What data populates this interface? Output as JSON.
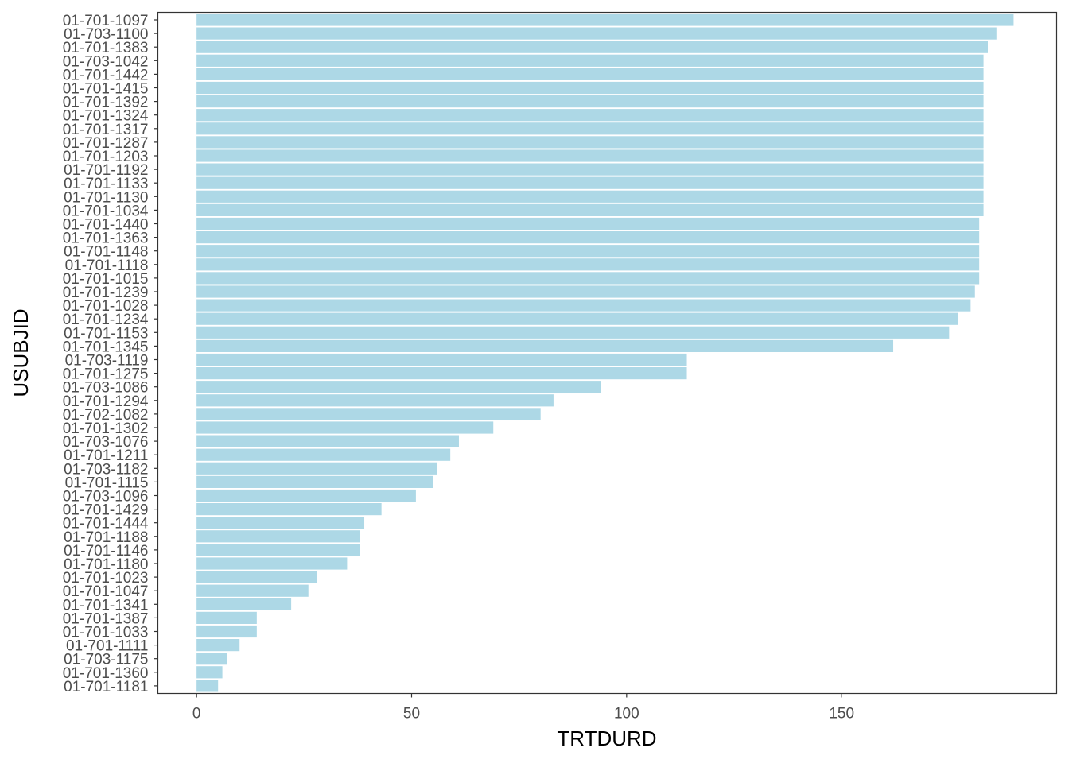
{
  "chart_data": {
    "type": "bar",
    "orientation": "horizontal",
    "xlabel": "TRTDURD",
    "ylabel": "USUBJID",
    "xlim": [
      -9,
      200
    ],
    "xticks": [
      0,
      50,
      100,
      150
    ],
    "grid": false,
    "legend": "none",
    "bar_color": "#ADD8E6",
    "panel_border_color": "#333333",
    "categories": [
      "01-701-1097",
      "01-703-1100",
      "01-701-1383",
      "01-703-1042",
      "01-701-1442",
      "01-701-1415",
      "01-701-1392",
      "01-701-1324",
      "01-701-1317",
      "01-701-1287",
      "01-701-1203",
      "01-701-1192",
      "01-701-1133",
      "01-701-1130",
      "01-701-1034",
      "01-701-1440",
      "01-701-1363",
      "01-701-1148",
      "01-701-1118",
      "01-701-1015",
      "01-701-1239",
      "01-701-1028",
      "01-701-1234",
      "01-701-1153",
      "01-701-1345",
      "01-703-1119",
      "01-701-1275",
      "01-703-1086",
      "01-701-1294",
      "01-702-1082",
      "01-701-1302",
      "01-703-1076",
      "01-701-1211",
      "01-703-1182",
      "01-701-1115",
      "01-703-1096",
      "01-701-1429",
      "01-701-1444",
      "01-701-1188",
      "01-701-1146",
      "01-701-1180",
      "01-701-1023",
      "01-701-1047",
      "01-701-1341",
      "01-701-1387",
      "01-701-1033",
      "01-701-1111",
      "01-703-1175",
      "01-701-1360",
      "01-701-1181"
    ],
    "values": [
      190,
      186,
      184,
      183,
      183,
      183,
      183,
      183,
      183,
      183,
      183,
      183,
      183,
      183,
      183,
      182,
      182,
      182,
      182,
      182,
      181,
      180,
      177,
      175,
      162,
      114,
      114,
      94,
      83,
      80,
      69,
      61,
      59,
      56,
      55,
      51,
      43,
      39,
      38,
      38,
      35,
      28,
      26,
      22,
      14,
      14,
      10,
      7,
      6,
      5
    ]
  }
}
